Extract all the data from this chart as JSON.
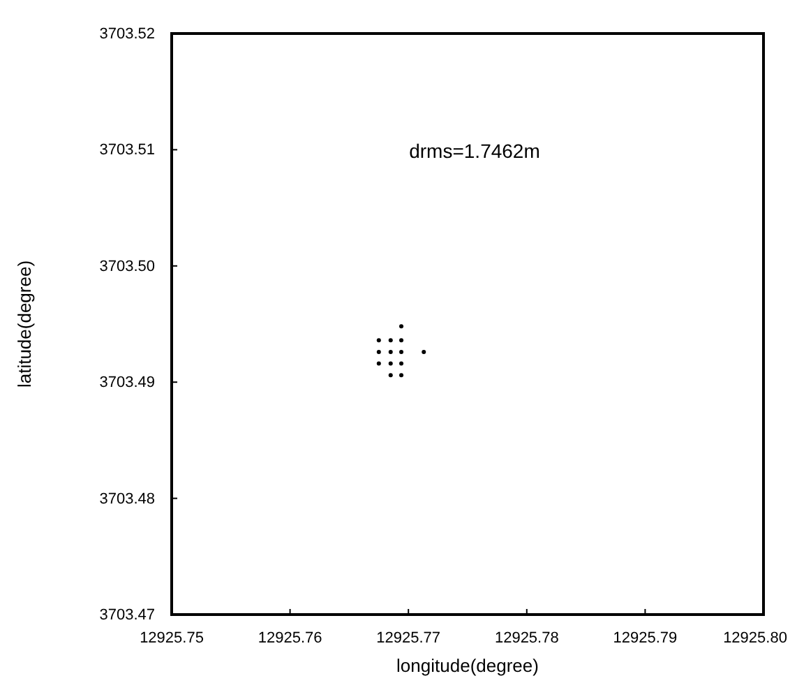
{
  "chart_data": {
    "type": "scatter",
    "xlabel": "longitude(degree)",
    "ylabel": "latitude(degree)",
    "annotations": [
      "drms=1.7462m"
    ],
    "x": [
      12925.7694,
      12925.7675,
      12925.7685,
      12925.7694,
      12925.7675,
      12925.7685,
      12925.7694,
      12925.7713,
      12925.7675,
      12925.7685,
      12925.7694,
      12925.7685,
      12925.7694
    ],
    "values": [
      3703.4948,
      3703.4936,
      3703.4936,
      3703.4936,
      3703.4926,
      3703.4926,
      3703.4926,
      3703.4926,
      3703.4916,
      3703.4916,
      3703.4916,
      3703.4906,
      3703.4906
    ],
    "color": "#000000",
    "marker": "circle",
    "grid": false,
    "xlim": [
      12925.75,
      12925.8
    ],
    "xticks": [
      {
        "value": 12925.75,
        "label": "12925.75"
      },
      {
        "value": 12925.76,
        "label": "12925.76"
      },
      {
        "value": 12925.77,
        "label": "12925.77"
      },
      {
        "value": 12925.78,
        "label": "12925.78"
      },
      {
        "value": 12925.79,
        "label": "12925.79"
      },
      {
        "value": 12925.8,
        "label": "12925.80"
      }
    ],
    "ylim": [
      3703.47,
      3703.52
    ],
    "yticks": [
      {
        "value": 3703.47,
        "label": "3703.47"
      },
      {
        "value": 3703.48,
        "label": "3703.48"
      },
      {
        "value": 3703.49,
        "label": "3703.49"
      },
      {
        "value": 3703.5,
        "label": "3703.50"
      },
      {
        "value": 3703.51,
        "label": "3703.51"
      },
      {
        "value": 3703.52,
        "label": "3703.52"
      }
    ]
  }
}
